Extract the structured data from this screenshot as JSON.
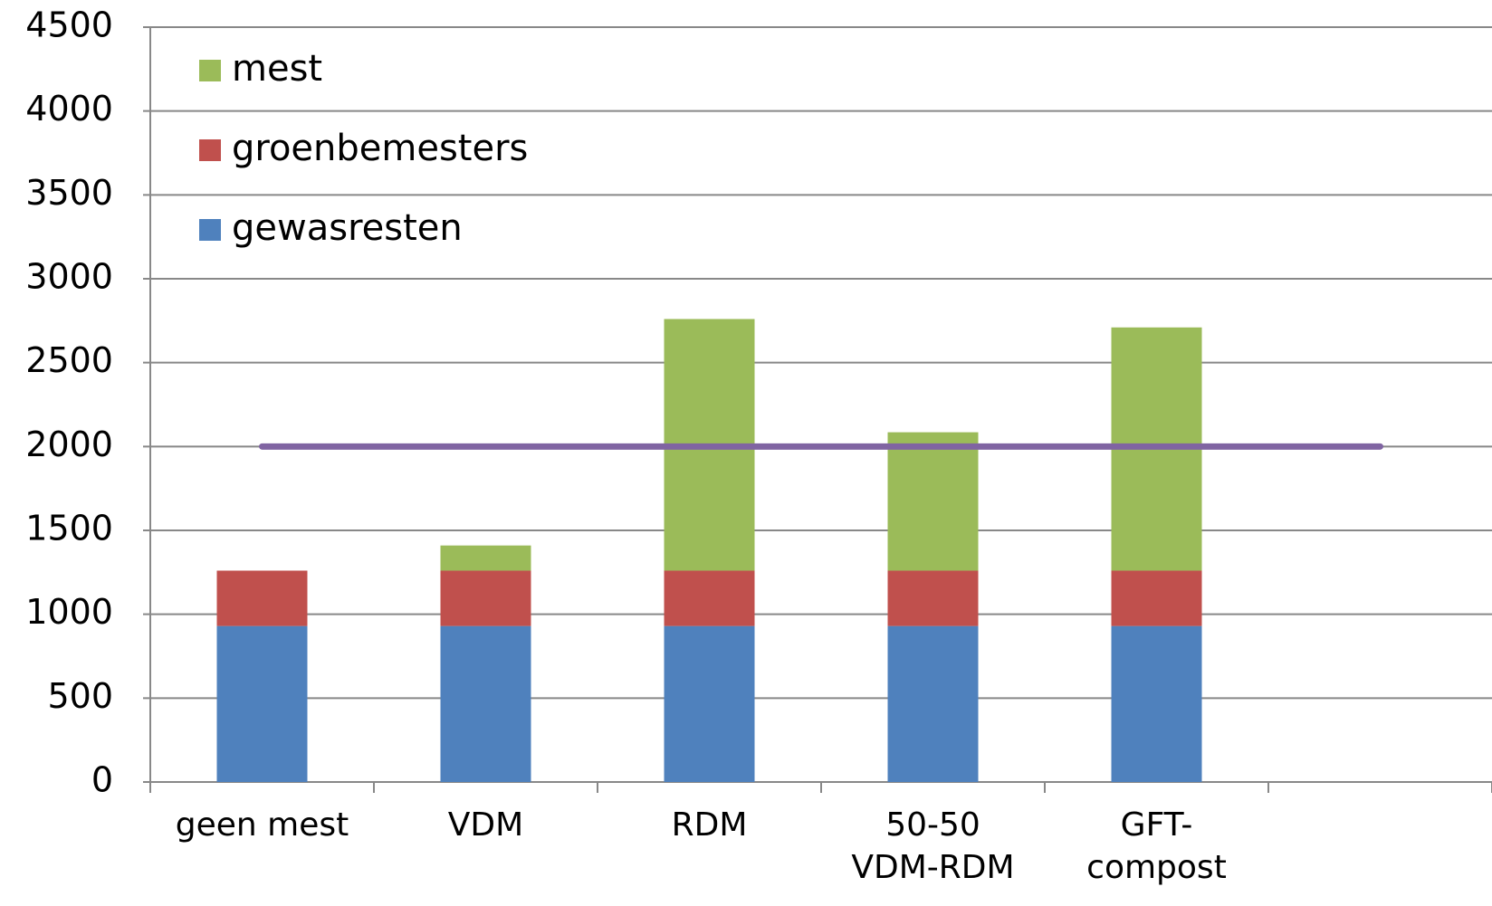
{
  "chart_data": {
    "type": "bar",
    "stacked": true,
    "categories": [
      "geen mest",
      "VDM",
      "RDM",
      "50-50 VDM-RDM",
      "GFT-compost",
      null
    ],
    "series": [
      {
        "name": "gewasresten",
        "color": "#4f81bd",
        "values": [
          930,
          930,
          930,
          930,
          930,
          null
        ]
      },
      {
        "name": "groenbemesters",
        "color": "#c0504d",
        "values": [
          330,
          330,
          330,
          330,
          330,
          null
        ]
      },
      {
        "name": "mest",
        "color": "#9bbb59",
        "values": [
          null,
          150,
          1500,
          825,
          1450,
          null
        ]
      },
      {
        "type": "line",
        "color": "#8064a2",
        "values": [
          2000,
          2000,
          2000,
          2000,
          2000,
          2000
        ]
      }
    ],
    "ylim": [
      0,
      4500
    ],
    "yticks": [
      0,
      500,
      1000,
      1500,
      2000,
      2500,
      3000,
      3500,
      4000,
      4500
    ],
    "grid": true,
    "legend": "upper left"
  }
}
